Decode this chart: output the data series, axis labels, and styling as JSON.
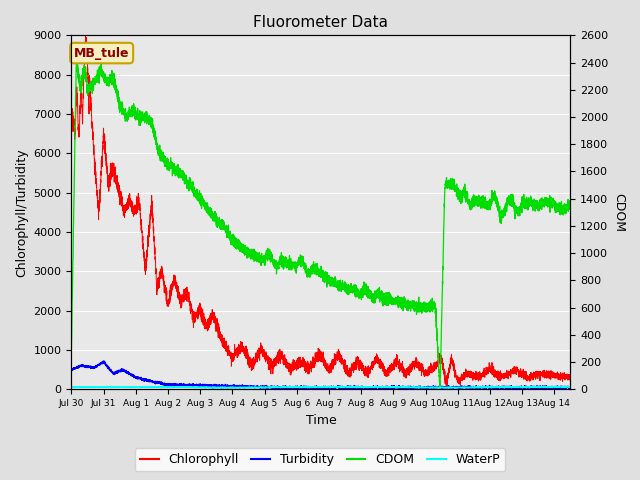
{
  "title": "Fluorometer Data",
  "xlabel": "Time",
  "ylabel_left": "Chlorophyll/Turbidity",
  "ylabel_right": "CDOM",
  "annotation": "MB_tule",
  "ylim_left": [
    0,
    9000
  ],
  "ylim_right": [
    0,
    2600
  ],
  "xlim_days": [
    0,
    15.5
  ],
  "xtick_labels": [
    "Jul 30",
    "Jul 31",
    "Aug 1",
    "Aug 2",
    "Aug 3",
    "Aug 4",
    "Aug 5",
    "Aug 6",
    "Aug 7",
    "Aug 8",
    "Aug 9",
    "Aug 10",
    "Aug 11",
    "Aug 12",
    "Aug 13",
    "Aug 14"
  ],
  "background_color": "#e0e0e0",
  "plot_bg_color": "#e8e8e8",
  "grid_color": "#ffffff",
  "colors": {
    "Chlorophyll": "red",
    "Turbidity": "blue",
    "CDOM": "#00dd00",
    "WaterP": "cyan"
  },
  "legend_labels": [
    "Chlorophyll",
    "Turbidity",
    "CDOM",
    "WaterP"
  ]
}
